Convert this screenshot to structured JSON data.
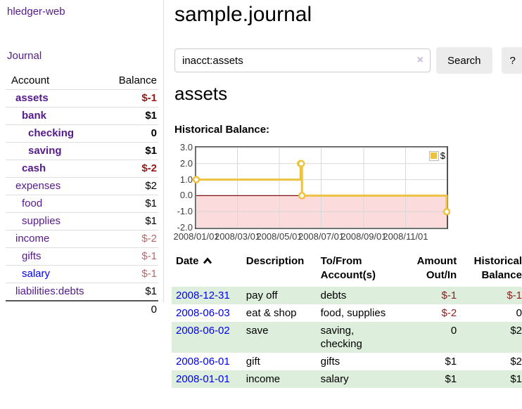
{
  "app": {
    "brand": "hledger-web",
    "nav_journal": "Journal"
  },
  "colors": {
    "link_purple": "#551a8b",
    "link_blue": "#0000ee",
    "negative_strong": "#941a1a",
    "negative_soft": "#b5686b",
    "row_highlight_green": "#ddeedd",
    "series_yellow": "#edc240",
    "negative_region_pink": "#fbdbdb",
    "zero_line_red": "#7d1212"
  },
  "sidebar": {
    "accounts": {
      "header": {
        "account": "Account",
        "balance": "Balance"
      },
      "rows": [
        {
          "name": "assets",
          "balance": "$-1",
          "level": 1,
          "bold": true,
          "link": "visited",
          "balance_tone": "neg-strong"
        },
        {
          "name": "bank",
          "balance": "$1",
          "level": 2,
          "bold": true,
          "link": "visited",
          "balance_tone": "pos"
        },
        {
          "name": "checking",
          "balance": "0",
          "level": 3,
          "bold": true,
          "link": "visited",
          "balance_tone": "pos"
        },
        {
          "name": "saving",
          "balance": "$1",
          "level": 3,
          "bold": true,
          "link": "visited",
          "balance_tone": "pos"
        },
        {
          "name": "cash",
          "balance": "$-2",
          "level": 2,
          "bold": true,
          "link": "visited",
          "balance_tone": "neg-strong"
        },
        {
          "name": "expenses",
          "balance": "$2",
          "level": 1,
          "bold": false,
          "link": "visited",
          "balance_tone": "pos"
        },
        {
          "name": "food",
          "balance": "$1",
          "level": 2,
          "bold": false,
          "link": "visited",
          "balance_tone": "pos"
        },
        {
          "name": "supplies",
          "balance": "$1",
          "level": 2,
          "bold": false,
          "link": "visited",
          "balance_tone": "pos"
        },
        {
          "name": "income",
          "balance": "$-2",
          "level": 1,
          "bold": false,
          "link": "visited",
          "balance_tone": "neg-soft"
        },
        {
          "name": "gifts",
          "balance": "$-1",
          "level": 2,
          "bold": false,
          "link": "visited",
          "balance_tone": "neg-soft"
        },
        {
          "name": "salary",
          "balance": "$-1",
          "level": 2,
          "bold": false,
          "link": "unvisited",
          "balance_tone": "neg-soft"
        },
        {
          "name": "liabilities:debts",
          "balance": "$1",
          "level": 1,
          "bold": false,
          "link": "visited",
          "balance_tone": "pos"
        }
      ],
      "total": "0"
    }
  },
  "main": {
    "title": "sample.journal",
    "search": {
      "value": "inacct:assets",
      "clear_icon": "×",
      "button": "Search",
      "help_button": "?"
    },
    "account_heading": "assets",
    "chart_label": "Historical Balance:",
    "register": {
      "headers": {
        "date": "Date",
        "date_sort": "ascending",
        "description": "Description",
        "accounts": "To/From Account(s)",
        "amount": "Amount Out/In",
        "balance": "Historical Balance"
      },
      "rows": [
        {
          "date": "2008-12-31",
          "description": "pay off",
          "accounts": "debts",
          "amount": "$-1",
          "amount_negative": true,
          "balance": "$-1",
          "balance_negative": true
        },
        {
          "date": "2008-06-03",
          "description": "eat & shop",
          "accounts": "food, supplies",
          "amount": "$-2",
          "amount_negative": true,
          "balance": "0",
          "balance_negative": false
        },
        {
          "date": "2008-06-02",
          "description": "save",
          "accounts": "saving, checking",
          "amount": "0",
          "amount_negative": false,
          "balance": "$2",
          "balance_negative": false
        },
        {
          "date": "2008-06-01",
          "description": "gift",
          "accounts": "gifts",
          "amount": "$1",
          "amount_negative": false,
          "balance": "$2",
          "balance_negative": false
        },
        {
          "date": "2008-01-01",
          "description": "income",
          "accounts": "salary",
          "amount": "$1",
          "amount_negative": false,
          "balance": "$1",
          "balance_negative": false
        }
      ]
    }
  },
  "chart_data": {
    "type": "line",
    "title": "Historical Balance",
    "step": true,
    "series": [
      {
        "name": "$",
        "color": "#edc240",
        "points": [
          [
            "2008-01-01",
            1
          ],
          [
            "2008-06-01",
            2
          ],
          [
            "2008-06-02",
            2
          ],
          [
            "2008-06-03",
            0
          ],
          [
            "2008-12-31",
            -1
          ]
        ]
      }
    ],
    "x_range": [
      "2008-01-01",
      "2008-12-31"
    ],
    "x_tick_labels": [
      "2008/01/01",
      "2008/03/01",
      "2008/05/01",
      "2008/07/01",
      "2008/09/01",
      "2008/11/01"
    ],
    "y_tick_labels": [
      "3.0",
      "2.0",
      "1.0",
      "0.0",
      "-1.0",
      "-2.0"
    ],
    "ylim": [
      -2,
      3
    ],
    "grid": true,
    "legend_position": "top-right",
    "negative_region_shaded": true
  }
}
